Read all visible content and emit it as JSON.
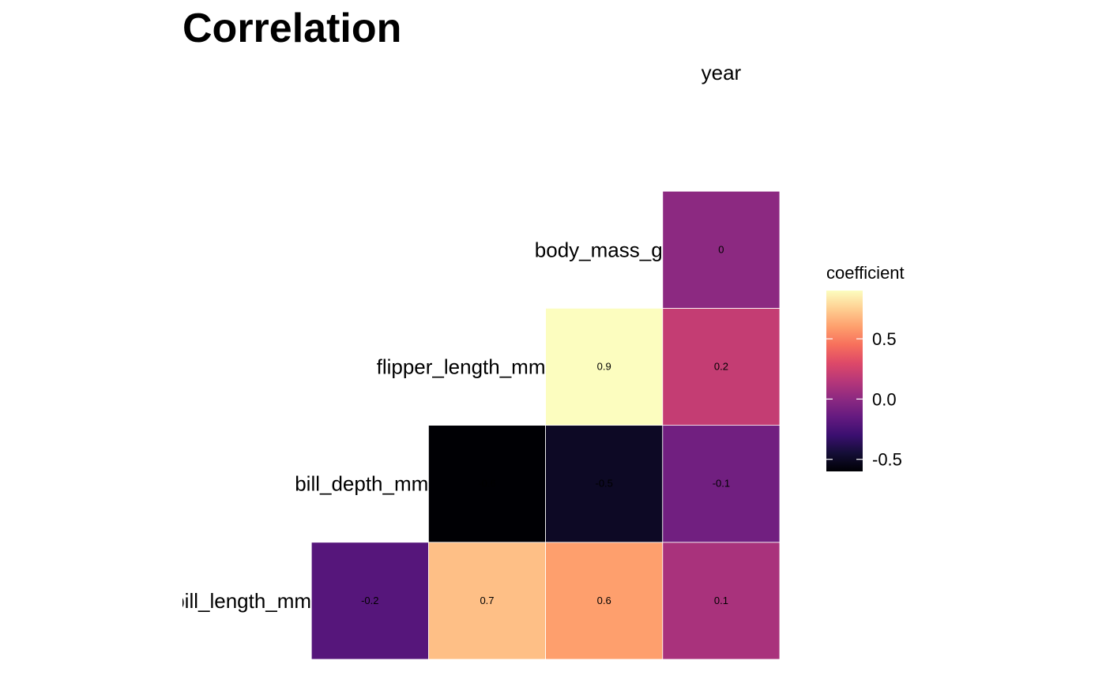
{
  "chart_data": {
    "type": "heatmap",
    "title": "Correlation",
    "variables": [
      "bill_length_mm",
      "bill_depth_mm",
      "flipper_length_mm",
      "body_mass_g",
      "year"
    ],
    "cells": [
      {
        "row": "bill_length_mm",
        "col": "bill_depth_mm",
        "value": -0.2,
        "label": "-0.2"
      },
      {
        "row": "bill_length_mm",
        "col": "flipper_length_mm",
        "value": 0.7,
        "label": "0.7"
      },
      {
        "row": "bill_length_mm",
        "col": "body_mass_g",
        "value": 0.6,
        "label": "0.6"
      },
      {
        "row": "bill_length_mm",
        "col": "year",
        "value": 0.1,
        "label": "0.1"
      },
      {
        "row": "bill_depth_mm",
        "col": "flipper_length_mm",
        "value": -0.6,
        "label": "-0.6"
      },
      {
        "row": "bill_depth_mm",
        "col": "body_mass_g",
        "value": -0.5,
        "label": "-0.5"
      },
      {
        "row": "bill_depth_mm",
        "col": "year",
        "value": -0.1,
        "label": "-0.1"
      },
      {
        "row": "flipper_length_mm",
        "col": "body_mass_g",
        "value": 0.9,
        "label": "0.9"
      },
      {
        "row": "flipper_length_mm",
        "col": "year",
        "value": 0.2,
        "label": "0.2"
      },
      {
        "row": "body_mass_g",
        "col": "year",
        "value": 0,
        "label": "0"
      }
    ],
    "legend": {
      "title": "coefficient",
      "range": [
        -0.6,
        0.9
      ],
      "ticks": [
        {
          "value": 0.5,
          "label": "0.5"
        },
        {
          "value": 0.0,
          "label": "0.0"
        },
        {
          "value": -0.5,
          "label": "-0.5"
        }
      ],
      "placement": "right"
    },
    "colormap_stops": [
      "#000004",
      "#140e36",
      "#3b0f70",
      "#641a80",
      "#8c2981",
      "#b73779",
      "#de4968",
      "#f7705c",
      "#fe9f6d",
      "#fecf92",
      "#fcfdbf"
    ],
    "grid": false
  }
}
